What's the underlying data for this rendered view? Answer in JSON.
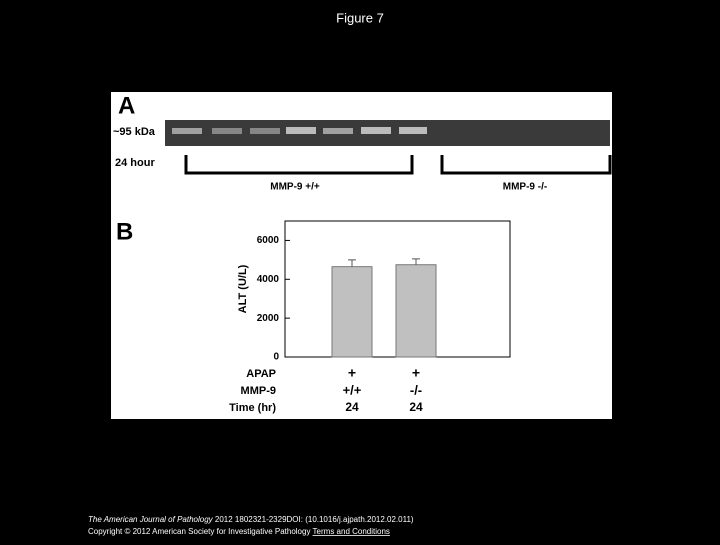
{
  "page_title": "Figure 7",
  "panel_a": {
    "label": "A",
    "marker": "~95 kDa",
    "time": "24 hour",
    "group_1": "MMP-9 +/+",
    "group_2": "MMP-9 -/-"
  },
  "chart_data": {
    "type": "bar",
    "panel_label": "B",
    "y_label": "ALT (U/L)",
    "categories": [
      "+/+",
      "-/-"
    ],
    "category_label": "MMP-9",
    "extra_rows": [
      {
        "label": "APAP",
        "values": [
          "+",
          "+"
        ]
      },
      {
        "label": "Time (hr)",
        "values": [
          "24",
          "24"
        ]
      }
    ],
    "values": [
      4650,
      4750
    ],
    "errors": [
      350,
      300
    ],
    "color": "#c0c0c0",
    "ylim": [
      0,
      7000
    ],
    "yticks": [
      0,
      2000,
      4000,
      6000
    ]
  },
  "footer": {
    "journal": "The American Journal of Pathology",
    "citation": "2012 1802321-2329DOI: (10.1016/j.ajpath.2012.02.011)",
    "copyright": "Copyright © 2012 American Society for Investigative Pathology",
    "link": "Terms and Conditions"
  }
}
